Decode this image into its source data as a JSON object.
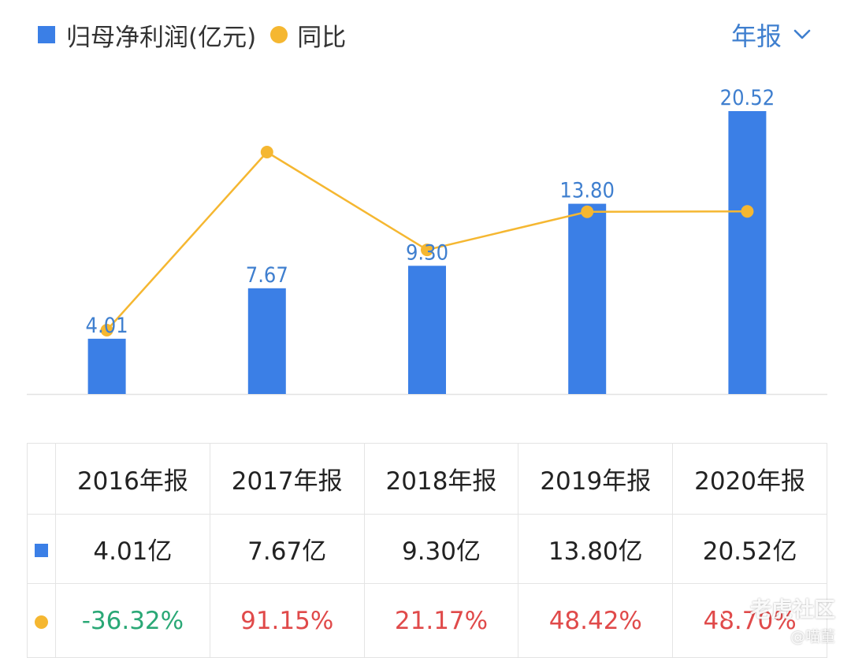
{
  "legend": {
    "bar_label": "归母净利润(亿元)",
    "line_label": "同比",
    "bar_color": "#3b7fe6",
    "line_color": "#f5b731"
  },
  "period_selector": {
    "label": "年报",
    "color": "#3f7fcf"
  },
  "chart_data": {
    "type": "bar",
    "categories": [
      "2016年报",
      "2017年报",
      "2018年报",
      "2019年报",
      "2020年报"
    ],
    "series": [
      {
        "name": "归母净利润(亿元)",
        "type": "bar",
        "values": [
          4.01,
          7.67,
          9.3,
          13.8,
          20.52
        ],
        "labels": [
          "4.01",
          "7.67",
          "9.30",
          "13.80",
          "20.52"
        ]
      },
      {
        "name": "同比",
        "type": "line",
        "values": [
          -36.32,
          91.15,
          21.17,
          48.42,
          48.7
        ]
      }
    ],
    "bar_ylim": [
      0,
      20.52
    ],
    "line_ylim": [
      -36.32,
      91.15
    ]
  },
  "table": {
    "headers": [
      "2016年报",
      "2017年报",
      "2018年报",
      "2019年报",
      "2020年报"
    ],
    "profit_row": [
      "4.01亿",
      "7.67亿",
      "9.30亿",
      "13.80亿",
      "20.52亿"
    ],
    "yoy_row": [
      "-36.32%",
      "91.15%",
      "21.17%",
      "48.42%",
      "48.70%"
    ],
    "positive_color": "#e04a4a",
    "negative_color": "#2aa876"
  },
  "watermark": {
    "line1": "老虎社区",
    "line2": "@喵董"
  }
}
